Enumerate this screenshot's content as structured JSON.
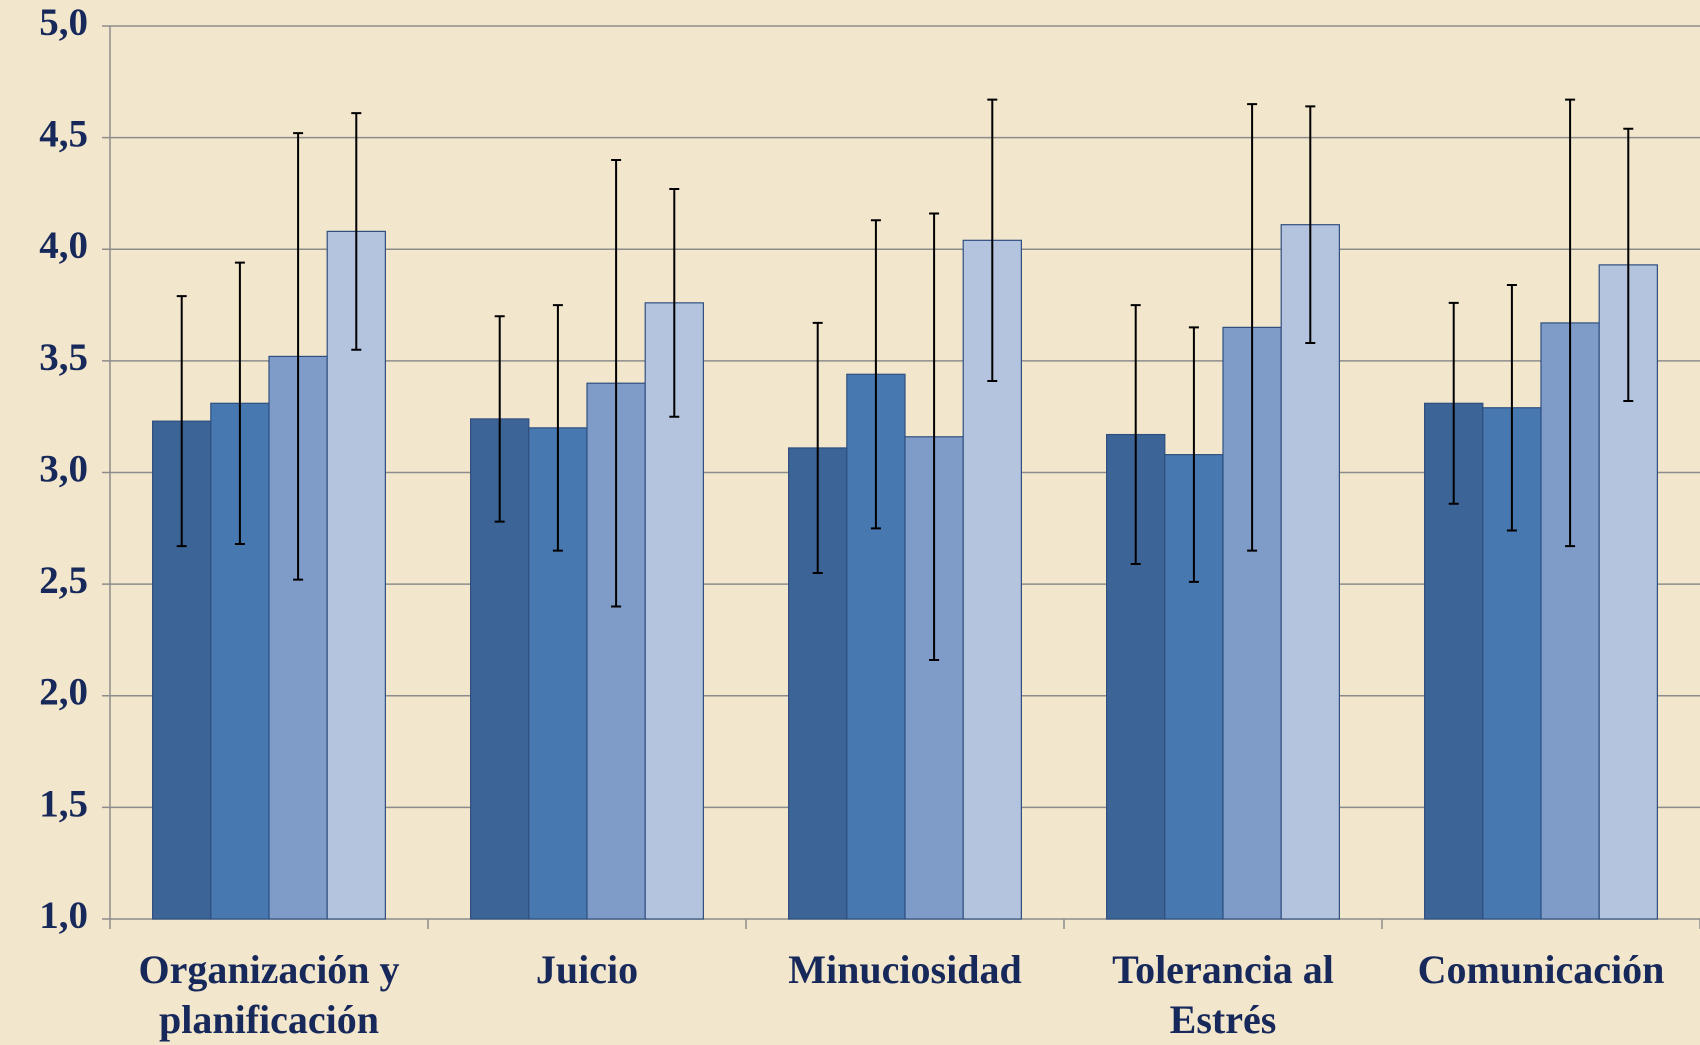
{
  "chart_data": {
    "type": "bar",
    "categories": [
      "Organización y planificación",
      "Juicio",
      "Minuciosidad",
      "Tolerancia al Estrés",
      "Comunicación"
    ],
    "series": [
      {
        "color": "#3d6496",
        "values": [
          3.23,
          3.24,
          3.11,
          3.17,
          3.31
        ],
        "errors": [
          0.56,
          0.46,
          0.56,
          0.58,
          0.45
        ]
      },
      {
        "color": "#4878b0",
        "values": [
          3.31,
          3.2,
          3.44,
          3.08,
          3.29
        ],
        "errors": [
          0.63,
          0.55,
          0.69,
          0.57,
          0.55
        ]
      },
      {
        "color": "#7f9cc8",
        "values": [
          3.52,
          3.4,
          3.16,
          3.65,
          3.67
        ],
        "errors": [
          1.0,
          1.0,
          1.0,
          1.0,
          1.0
        ]
      },
      {
        "color": "#b4c3de",
        "values": [
          4.08,
          3.76,
          4.04,
          4.11,
          3.93
        ],
        "errors": [
          0.53,
          0.51,
          0.63,
          0.53,
          0.61
        ]
      }
    ],
    "ylim": [
      1.0,
      5.0
    ],
    "yticks": [
      {
        "value": 1.0,
        "label": "1,0"
      },
      {
        "value": 1.5,
        "label": "1,5"
      },
      {
        "value": 2.0,
        "label": "2,0"
      },
      {
        "value": 2.5,
        "label": "2,5"
      },
      {
        "value": 3.0,
        "label": "3,0"
      },
      {
        "value": 3.5,
        "label": "3,5"
      },
      {
        "value": 4.0,
        "label": "4,0"
      },
      {
        "value": 4.5,
        "label": "4,5"
      },
      {
        "value": 5.0,
        "label": "5,0"
      }
    ],
    "grid": true
  }
}
